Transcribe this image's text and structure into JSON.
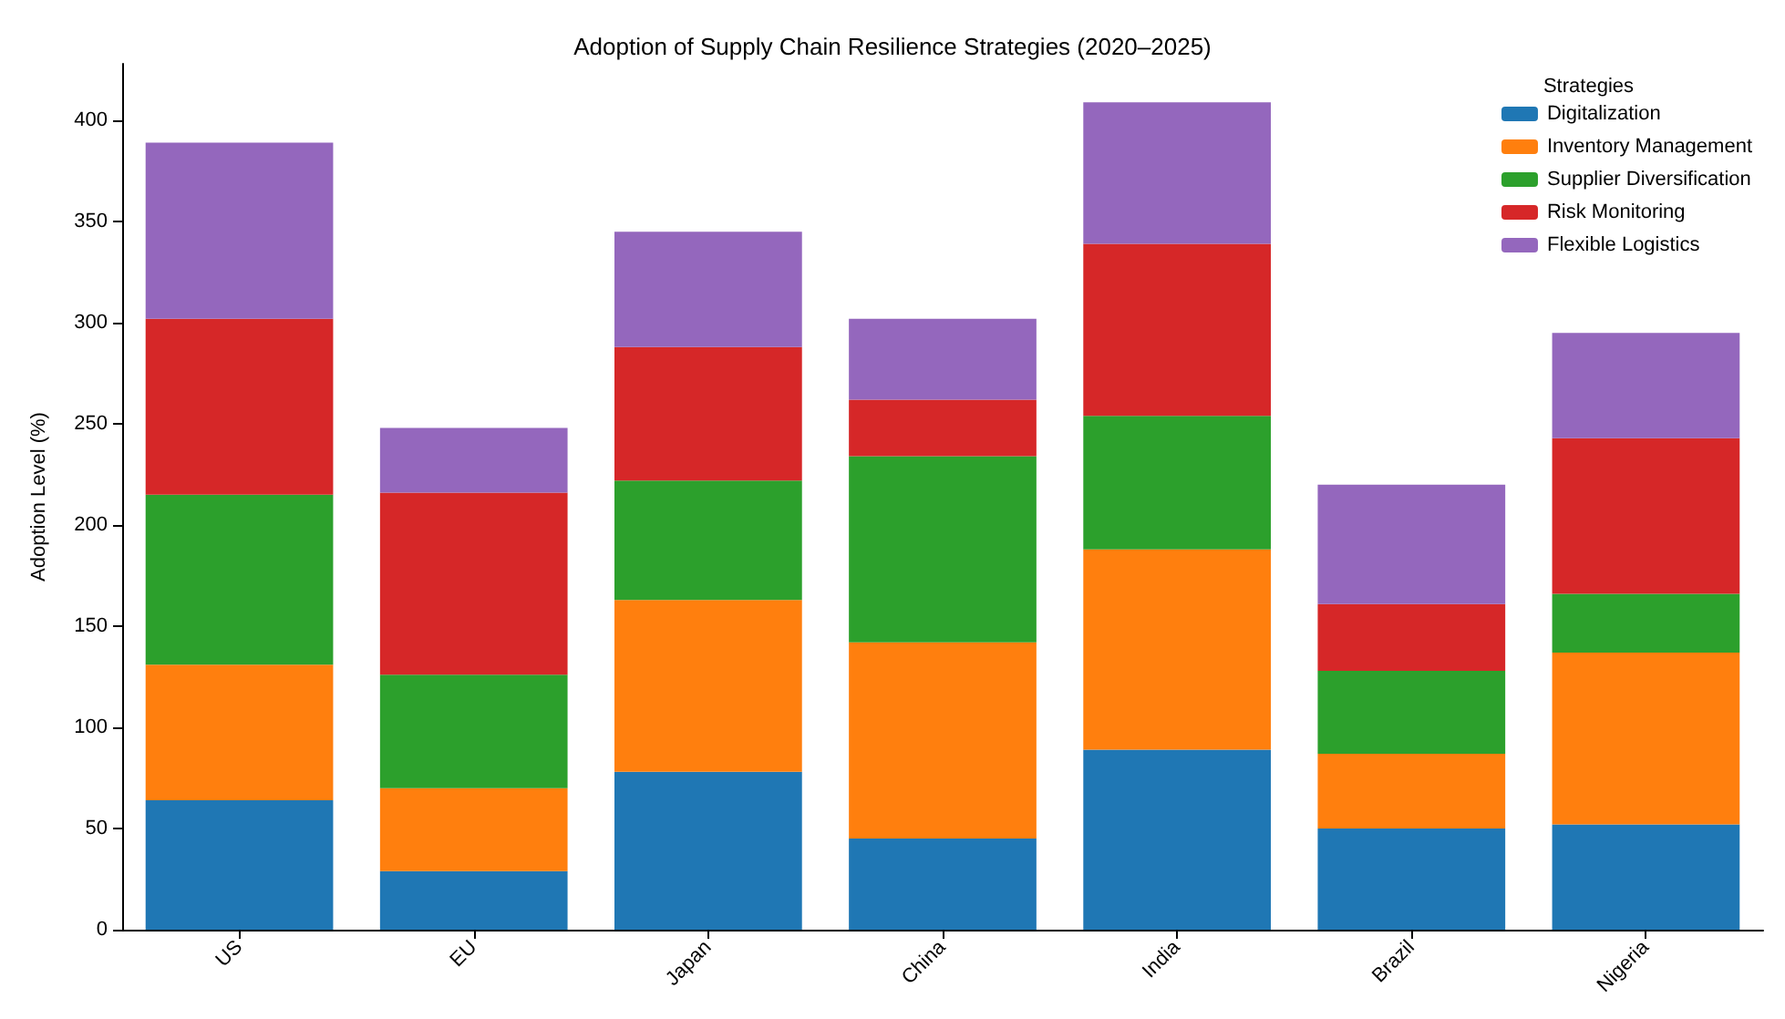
{
  "chart_data": {
    "type": "bar",
    "title": "Adoption of Supply Chain Resilience Strategies (2020–2025)",
    "ylabel": "Adoption Level (%)",
    "legend_title": "Strategies",
    "categories": [
      "US",
      "EU",
      "Japan",
      "China",
      "India",
      "Brazil",
      "Nigeria"
    ],
    "stacked": true,
    "ylim": [
      0,
      428
    ],
    "yticks": [
      0,
      50,
      100,
      150,
      200,
      250,
      300,
      350,
      400
    ],
    "grid": false,
    "legend": "top right",
    "series": [
      {
        "name": "Digitalization",
        "color": "#1f77b4",
        "values": [
          64,
          29,
          78,
          45,
          89,
          50,
          52
        ]
      },
      {
        "name": "Inventory Management",
        "color": "#ff7f0e",
        "values": [
          67,
          41,
          85,
          97,
          99,
          37,
          85
        ]
      },
      {
        "name": "Supplier Diversification",
        "color": "#2ca02c",
        "values": [
          84,
          56,
          59,
          92,
          66,
          41,
          29
        ]
      },
      {
        "name": "Risk Monitoring",
        "color": "#d62728",
        "values": [
          87,
          90,
          66,
          28,
          85,
          33,
          77
        ]
      },
      {
        "name": "Flexible Logistics",
        "color": "#9467bd",
        "values": [
          87,
          32,
          57,
          40,
          70,
          59,
          52
        ]
      }
    ]
  }
}
